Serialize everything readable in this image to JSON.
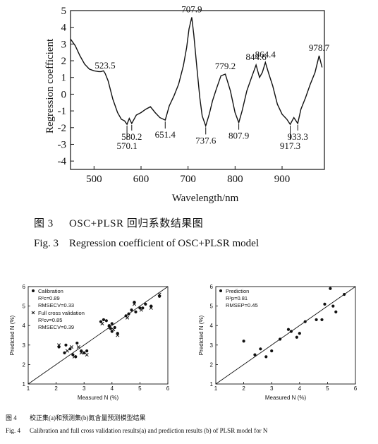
{
  "figure3": {
    "caption_zh_num": "图 3",
    "caption_zh_text": "OSC+PLSR 回归系数结果图",
    "caption_en_num": "Fig. 3",
    "caption_en_text": "Regression coefficient of OSC+PLSR model"
  },
  "figure4": {
    "caption_zh_num": "图 4",
    "caption_zh_text": "校正集(a)和预测集(b)氮含量预测模型结果",
    "caption_en_num": "Fig. 4",
    "caption_en_text": "Calibration and full cross validation results(a) and prediction results (b) of PLSR model for N"
  },
  "chart_data": [
    {
      "type": "line",
      "xlabel": "Wavelength/nm",
      "ylabel": "Regression coefficient",
      "xlim": [
        450,
        990
      ],
      "ylim": [
        -4.5,
        5
      ],
      "xticks": [
        500,
        600,
        700,
        800,
        900
      ],
      "yticks": [
        -4,
        -3,
        -2,
        -1,
        0,
        1,
        2,
        3,
        4,
        5
      ],
      "series": [
        {
          "x": [
            450,
            460,
            470,
            480,
            490,
            500,
            510,
            515,
            520,
            523.5,
            530,
            540,
            550,
            558,
            565,
            570.1,
            575,
            580.2,
            590,
            600,
            610,
            620,
            630,
            640,
            651.4,
            660,
            670,
            680,
            690,
            697,
            702,
            707.9,
            712,
            718,
            725,
            730,
            737.6,
            745,
            752,
            760,
            770,
            779.2,
            790,
            800,
            807.9,
            815,
            825,
            835,
            844.6,
            852,
            858,
            864.4,
            872,
            880,
            890,
            900,
            910,
            917.3,
            925,
            933.3,
            940,
            950,
            960,
            970,
            978.7,
            985
          ],
          "y": [
            3.3,
            2.9,
            2.3,
            1.8,
            1.5,
            1.4,
            1.35,
            1.35,
            1.4,
            1.25,
            0.8,
            -0.3,
            -1.1,
            -1.5,
            -1.6,
            -1.8,
            -1.45,
            -1.75,
            -1.25,
            -1.1,
            -0.9,
            -0.75,
            -1.1,
            -1.4,
            -1.55,
            -0.7,
            -0.1,
            0.6,
            1.7,
            2.8,
            3.9,
            4.6,
            3.6,
            1.8,
            -0.2,
            -1.3,
            -1.9,
            -1.2,
            -0.4,
            0.3,
            1.1,
            1.2,
            0.2,
            -1.1,
            -1.7,
            -1.0,
            0.2,
            1.0,
            1.75,
            1.0,
            1.3,
            1.9,
            1.2,
            0.5,
            -0.6,
            -1.2,
            -1.5,
            -1.8,
            -1.4,
            -1.75,
            -0.9,
            -0.2,
            0.6,
            1.3,
            2.3,
            1.6
          ]
        }
      ],
      "annotations": [
        "523.5",
        "570.1",
        "580.2",
        "651.4",
        "707.9",
        "737.6",
        "779.2",
        "807.9",
        "844.6",
        "864.4",
        "917.3",
        "933.3",
        "978.7"
      ]
    },
    {
      "type": "scatter",
      "panel": "a",
      "xlabel": "Measured N (%)",
      "ylabel": "Predicted N (%)",
      "xlim": [
        1,
        6
      ],
      "ylim": [
        1,
        6
      ],
      "legend": "top-left",
      "stats": [
        {
          "label": "Calibration",
          "r2": "R²c=0.89",
          "rmse": "RMSECV=0.33"
        },
        {
          "label": "Full cross validation",
          "r2": "R²cv=0.85",
          "rmse": "RMSECV=0.39"
        }
      ],
      "series": [
        {
          "name": "Calibration",
          "points": [
            [
              2.1,
              2.9
            ],
            [
              2.3,
              2.6
            ],
            [
              2.35,
              3.0
            ],
            [
              2.5,
              2.8
            ],
            [
              2.6,
              2.5
            ],
            [
              2.7,
              2.4
            ],
            [
              2.75,
              3.1
            ],
            [
              2.9,
              2.7
            ],
            [
              3.0,
              2.6
            ],
            [
              3.1,
              2.7
            ],
            [
              3.6,
              4.2
            ],
            [
              3.7,
              4.3
            ],
            [
              3.8,
              4.25
            ],
            [
              3.9,
              4.0
            ],
            [
              3.95,
              3.85
            ],
            [
              4.0,
              3.7
            ],
            [
              4.0,
              4.1
            ],
            [
              4.1,
              3.9
            ],
            [
              4.2,
              3.6
            ],
            [
              4.5,
              4.5
            ],
            [
              4.6,
              4.6
            ],
            [
              4.7,
              4.8
            ],
            [
              4.8,
              5.2
            ],
            [
              4.85,
              4.7
            ],
            [
              5.0,
              4.9
            ],
            [
              5.1,
              4.9
            ],
            [
              5.2,
              5.1
            ],
            [
              5.4,
              5.0
            ],
            [
              5.7,
              5.5
            ]
          ]
        },
        {
          "name": "Full cross validation",
          "points": [
            [
              2.1,
              3.0
            ],
            [
              2.4,
              2.7
            ],
            [
              2.55,
              2.9
            ],
            [
              2.65,
              2.4
            ],
            [
              2.8,
              2.9
            ],
            [
              2.9,
              2.6
            ],
            [
              3.1,
              2.5
            ],
            [
              3.65,
              4.1
            ],
            [
              3.9,
              3.9
            ],
            [
              4.05,
              3.8
            ],
            [
              4.2,
              3.5
            ],
            [
              4.55,
              4.4
            ],
            [
              4.8,
              5.1
            ],
            [
              5.05,
              4.8
            ],
            [
              5.4,
              4.9
            ],
            [
              5.7,
              5.6
            ]
          ]
        }
      ]
    },
    {
      "type": "scatter",
      "panel": "b",
      "xlabel": "Measured N (%)",
      "ylabel": "Predicted N (%)",
      "xlim": [
        1,
        6
      ],
      "ylim": [
        1,
        6
      ],
      "legend": "top-left",
      "stats": [
        {
          "label": "Prediction",
          "r2": "R²p=0.81",
          "rmse": "RMSEP=0.45"
        }
      ],
      "series": [
        {
          "name": "Prediction",
          "points": [
            [
              2.0,
              3.2
            ],
            [
              2.4,
              2.5
            ],
            [
              2.6,
              2.8
            ],
            [
              2.8,
              2.4
            ],
            [
              3.0,
              2.7
            ],
            [
              3.3,
              3.3
            ],
            [
              3.6,
              3.8
            ],
            [
              3.7,
              3.7
            ],
            [
              3.9,
              3.4
            ],
            [
              4.0,
              3.6
            ],
            [
              4.2,
              4.2
            ],
            [
              4.6,
              4.3
            ],
            [
              4.8,
              4.3
            ],
            [
              4.9,
              5.1
            ],
            [
              5.1,
              5.9
            ],
            [
              5.2,
              5.0
            ],
            [
              5.3,
              4.7
            ],
            [
              5.6,
              5.6
            ]
          ]
        }
      ]
    }
  ]
}
